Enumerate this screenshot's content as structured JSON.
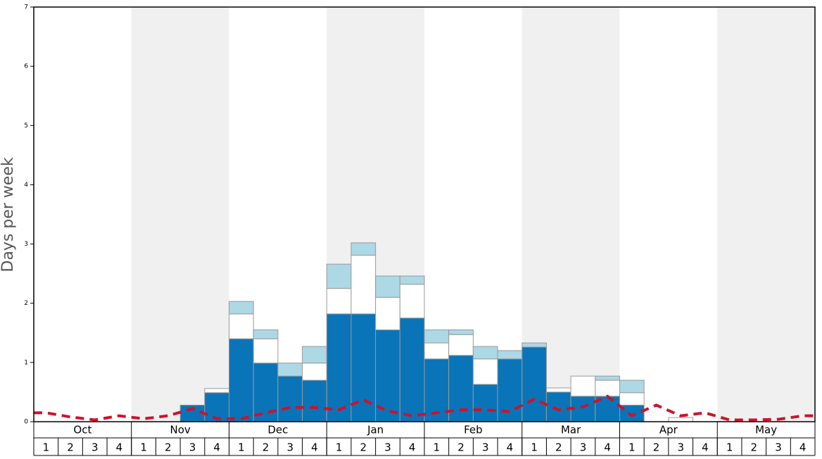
{
  "chart_data": {
    "type": "bar",
    "stacked": true,
    "y_label": "Days per week",
    "ylim": [
      0,
      7
    ],
    "yticks": [
      0,
      1,
      2,
      3,
      4,
      5,
      6,
      7
    ],
    "months": [
      "Oct",
      "Nov",
      "Dec",
      "Jan",
      "Feb",
      "Mar",
      "Apr",
      "May"
    ],
    "categories": [
      "1",
      "2",
      "3",
      "4",
      "1",
      "2",
      "3",
      "4",
      "1",
      "2",
      "3",
      "4",
      "1",
      "2",
      "3",
      "4",
      "1",
      "2",
      "3",
      "4",
      "1",
      "2",
      "3",
      "4",
      "1",
      "2",
      "3",
      "4",
      "1",
      "2",
      "3",
      "4"
    ],
    "series": [
      {
        "type": "bar",
        "color": "#0a74b8",
        "values": [
          0,
          0,
          0,
          0,
          0,
          0,
          0.28,
          0.49,
          1.4,
          0.99,
          0.77,
          0.7,
          1.82,
          1.82,
          1.55,
          1.75,
          1.06,
          1.12,
          0.63,
          1.06,
          1.26,
          0.5,
          0.43,
          0.43,
          0.28,
          0,
          0,
          0,
          0,
          0,
          0,
          0
        ]
      },
      {
        "type": "bar",
        "color": "#ffffff",
        "values": [
          0,
          0,
          0,
          0,
          0,
          0,
          0,
          0.07,
          0.42,
          0.41,
          0,
          0.29,
          0.43,
          0.99,
          0.55,
          0.57,
          0.27,
          0.35,
          0.43,
          0,
          0,
          0.07,
          0.34,
          0.27,
          0.21,
          0,
          0.07,
          0,
          0,
          0,
          0,
          0
        ]
      },
      {
        "type": "bar",
        "color": "#add8e6",
        "values": [
          0,
          0,
          0,
          0,
          0,
          0,
          0,
          0,
          0.21,
          0.15,
          0.22,
          0.28,
          0.41,
          0.21,
          0.36,
          0.14,
          0.22,
          0.08,
          0.21,
          0.14,
          0.07,
          0,
          0,
          0.07,
          0.21,
          0,
          0,
          0,
          0,
          0,
          0,
          0
        ]
      },
      {
        "type": "line",
        "color": "#d0112b",
        "values": [
          0.15,
          0.08,
          0.03,
          0.1,
          0.05,
          0.1,
          0.22,
          0.05,
          0.05,
          0.15,
          0.24,
          0.24,
          0.2,
          0.37,
          0.18,
          0.1,
          0.15,
          0.2,
          0.2,
          0.17,
          0.38,
          0.2,
          0.25,
          0.43,
          0.1,
          0.28,
          0.1,
          0.15,
          0.03,
          0.03,
          0.04,
          0.1
        ]
      }
    ]
  }
}
